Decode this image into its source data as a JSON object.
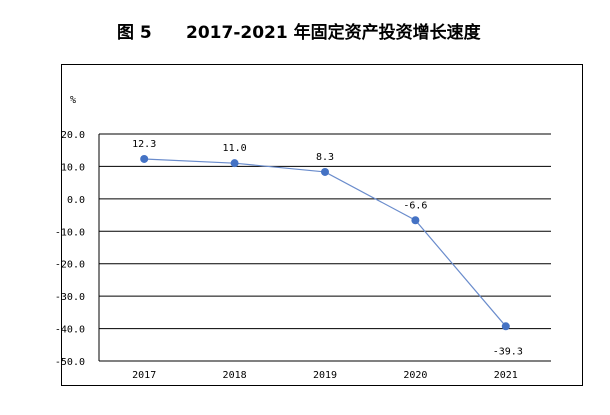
{
  "chart_data": {
    "type": "line",
    "figure_label": "图 5",
    "title": "2017-2021 年固定资产投资增长速度",
    "ylabel": "%",
    "xlabel": "",
    "categories": [
      "2017",
      "2018",
      "2019",
      "2020",
      "2021"
    ],
    "series": [
      {
        "values": [
          12.3,
          11.0,
          8.3,
          -6.6,
          -39.3
        ],
        "labels": [
          "12.3",
          "11.0",
          "8.3",
          "-6.6",
          "-39.3"
        ]
      }
    ],
    "ylim": [
      -50.0,
      20.0
    ],
    "yticks": [
      "20.0",
      "10.0",
      "0.0",
      "-10.0",
      "-20.0",
      "-30.0",
      "-40.0",
      "-50.0"
    ],
    "grid": true,
    "legend": "none",
    "colors": {
      "line": "#6a8ccc",
      "marker": "#4472c4",
      "grid": "#000000"
    }
  }
}
